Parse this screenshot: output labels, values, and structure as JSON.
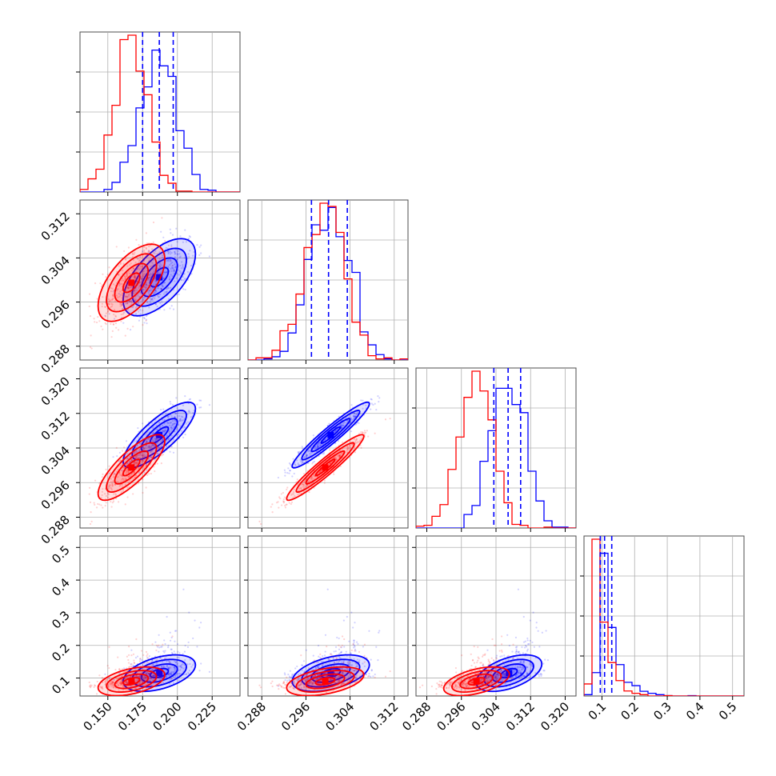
{
  "chart_data": {
    "type": "corner",
    "grid": true,
    "colors": {
      "series_a": "#0000ff",
      "series_b": "#ff0000",
      "frame": "#4d4d4d",
      "grid": "#b0b0b0"
    },
    "series": [
      {
        "color": "#0000ff",
        "mean": [
          0.187,
          0.3005,
          0.307,
          0.115
        ],
        "sd": [
          0.013,
          0.0035,
          0.0038,
          0.028
        ],
        "corr": {
          "0-1": 0.6,
          "0-2": 0.8,
          "1-2": 0.95,
          "0-3": 0.45,
          "1-3": 0.45,
          "2-3": 0.5
        }
      },
      {
        "color": "#ff0000",
        "mean": [
          0.167,
          0.2995,
          0.2995,
          0.09
        ],
        "sd": [
          0.012,
          0.0035,
          0.0038,
          0.022
        ],
        "corr": {
          "0-1": 0.6,
          "0-2": 0.8,
          "1-2": 0.95,
          "0-3": 0.45,
          "1-3": 0.45,
          "2-3": 0.5
        }
      }
    ],
    "quantile_lines": {
      "color": "#0000ff",
      "values": [
        [
          0.175,
          0.187,
          0.197
        ],
        [
          0.297,
          0.3001,
          0.3035
        ],
        [
          0.3035,
          0.3068,
          0.3097
        ],
        [
          0.095,
          0.108,
          0.13
        ]
      ]
    },
    "params": [
      {
        "range": [
          0.13,
          0.245
        ],
        "ticks": [
          0.15,
          0.175,
          0.2,
          0.225
        ],
        "tick_labels": [
          "0.150",
          "0.175",
          "0.200",
          "0.225"
        ]
      },
      {
        "range": [
          0.2855,
          0.3145
        ],
        "ticks": [
          0.288,
          0.296,
          0.304,
          0.312
        ],
        "tick_labels": [
          "0.288",
          "0.296",
          "0.304",
          "0.312"
        ]
      },
      {
        "range": [
          0.2855,
          0.3225
        ],
        "ticks": [
          0.288,
          0.296,
          0.304,
          0.312,
          0.32
        ],
        "tick_labels": [
          "0.288",
          "0.296",
          "0.304",
          "0.312",
          "0.320"
        ]
      },
      {
        "range": [
          0.045,
          0.535
        ],
        "ticks": [
          0.1,
          0.2,
          0.3,
          0.4,
          0.5
        ],
        "tick_labels": [
          "0.1",
          "0.2",
          "0.3",
          "0.4",
          "0.5"
        ]
      }
    ]
  }
}
